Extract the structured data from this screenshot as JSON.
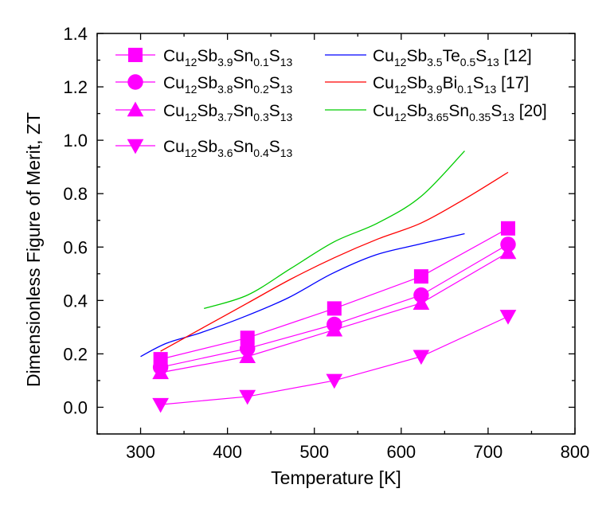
{
  "chart_data": {
    "type": "line",
    "xlabel": "Temperature [K]",
    "ylabel": "Dimensionless Figure of Merit, ZT",
    "xlim": [
      250,
      800
    ],
    "ylim": [
      -0.1,
      1.4
    ],
    "xticks": [
      "300",
      "400",
      "500",
      "600",
      "700",
      "800"
    ],
    "yticks": [
      "0.0",
      "0.2",
      "0.4",
      "0.6",
      "0.8",
      "1.0",
      "1.2",
      "1.4"
    ],
    "legend_placement": "top",
    "colors": {
      "magenta": "#ff00ff",
      "blue": "#0000ff",
      "red": "#ff0000",
      "green": "#00cc00"
    },
    "series": [
      {
        "legend": [
          [
            "Cu",
            "n"
          ],
          [
            "12",
            "s"
          ],
          [
            "Sb",
            "n"
          ],
          [
            "3.9",
            "s"
          ],
          [
            "Sn",
            "n"
          ],
          [
            "0.1",
            "s"
          ],
          [
            "S",
            "n"
          ],
          [
            "13",
            "s"
          ]
        ],
        "kind": "markers",
        "marker": "square",
        "color": "#ff00ff",
        "x": [
          323,
          423,
          523,
          623,
          723
        ],
        "y": [
          0.18,
          0.26,
          0.37,
          0.49,
          0.67
        ]
      },
      {
        "legend": [
          [
            "Cu",
            "n"
          ],
          [
            "12",
            "s"
          ],
          [
            "Sb",
            "n"
          ],
          [
            "3.8",
            "s"
          ],
          [
            "Sn",
            "n"
          ],
          [
            "0.2",
            "s"
          ],
          [
            "S",
            "n"
          ],
          [
            "13",
            "s"
          ]
        ],
        "kind": "markers",
        "marker": "circle",
        "color": "#ff00ff",
        "x": [
          323,
          423,
          523,
          623,
          723
        ],
        "y": [
          0.15,
          0.22,
          0.31,
          0.42,
          0.61
        ]
      },
      {
        "legend": [
          [
            "Cu",
            "n"
          ],
          [
            "12",
            "s"
          ],
          [
            "Sb",
            "n"
          ],
          [
            "3.7",
            "s"
          ],
          [
            "Sn",
            "n"
          ],
          [
            "0.3",
            "s"
          ],
          [
            "S",
            "n"
          ],
          [
            "13",
            "s"
          ]
        ],
        "kind": "markers",
        "marker": "triangle-up",
        "color": "#ff00ff",
        "x": [
          323,
          423,
          523,
          623,
          723
        ],
        "y": [
          0.13,
          0.19,
          0.29,
          0.39,
          0.58
        ]
      },
      {
        "legend": [
          [
            "Cu",
            "n"
          ],
          [
            "12",
            "s"
          ],
          [
            "Sb",
            "n"
          ],
          [
            "3.6",
            "s"
          ],
          [
            "Sn",
            "n"
          ],
          [
            "0.4",
            "s"
          ],
          [
            "S",
            "n"
          ],
          [
            "13",
            "s"
          ]
        ],
        "kind": "markers",
        "marker": "triangle-down",
        "color": "#ff00ff",
        "x": [
          323,
          423,
          523,
          623,
          723
        ],
        "y": [
          0.01,
          0.04,
          0.1,
          0.19,
          0.34
        ]
      },
      {
        "legend": [
          [
            "Cu",
            "n"
          ],
          [
            "12",
            "s"
          ],
          [
            "Sb",
            "n"
          ],
          [
            "3.5",
            "s"
          ],
          [
            "Te",
            "n"
          ],
          [
            "0.5",
            "s"
          ],
          [
            "S",
            "n"
          ],
          [
            "13",
            "s"
          ],
          [
            " [12]",
            "n"
          ]
        ],
        "kind": "line",
        "color": "#0000ff",
        "x": [
          300,
          330,
          370,
          420,
          470,
          520,
          570,
          620,
          673
        ],
        "y": [
          0.19,
          0.24,
          0.28,
          0.34,
          0.41,
          0.5,
          0.57,
          0.61,
          0.65
        ]
      },
      {
        "legend": [
          [
            "Cu",
            "n"
          ],
          [
            "12",
            "s"
          ],
          [
            "Sb",
            "n"
          ],
          [
            "3.9",
            "s"
          ],
          [
            "Bi",
            "n"
          ],
          [
            "0.1",
            "s"
          ],
          [
            "S",
            "n"
          ],
          [
            "13",
            "s"
          ],
          [
            " [17]",
            "n"
          ]
        ],
        "kind": "line",
        "color": "#ff0000",
        "x": [
          323,
          373,
          423,
          473,
          523,
          573,
          623,
          673,
          723
        ],
        "y": [
          0.21,
          0.3,
          0.39,
          0.48,
          0.56,
          0.63,
          0.69,
          0.78,
          0.88
        ]
      },
      {
        "legend": [
          [
            "Cu",
            "n"
          ],
          [
            "12",
            "s"
          ],
          [
            "Sb",
            "n"
          ],
          [
            "3.65",
            "s"
          ],
          [
            "Sn",
            "n"
          ],
          [
            "0.35",
            "s"
          ],
          [
            "S",
            "n"
          ],
          [
            "13",
            "s"
          ],
          [
            " [20]",
            "n"
          ]
        ],
        "kind": "line",
        "color": "#00cc00",
        "x": [
          373,
          423,
          473,
          523,
          573,
          623,
          673
        ],
        "y": [
          0.37,
          0.42,
          0.52,
          0.62,
          0.69,
          0.79,
          0.96
        ]
      }
    ]
  }
}
